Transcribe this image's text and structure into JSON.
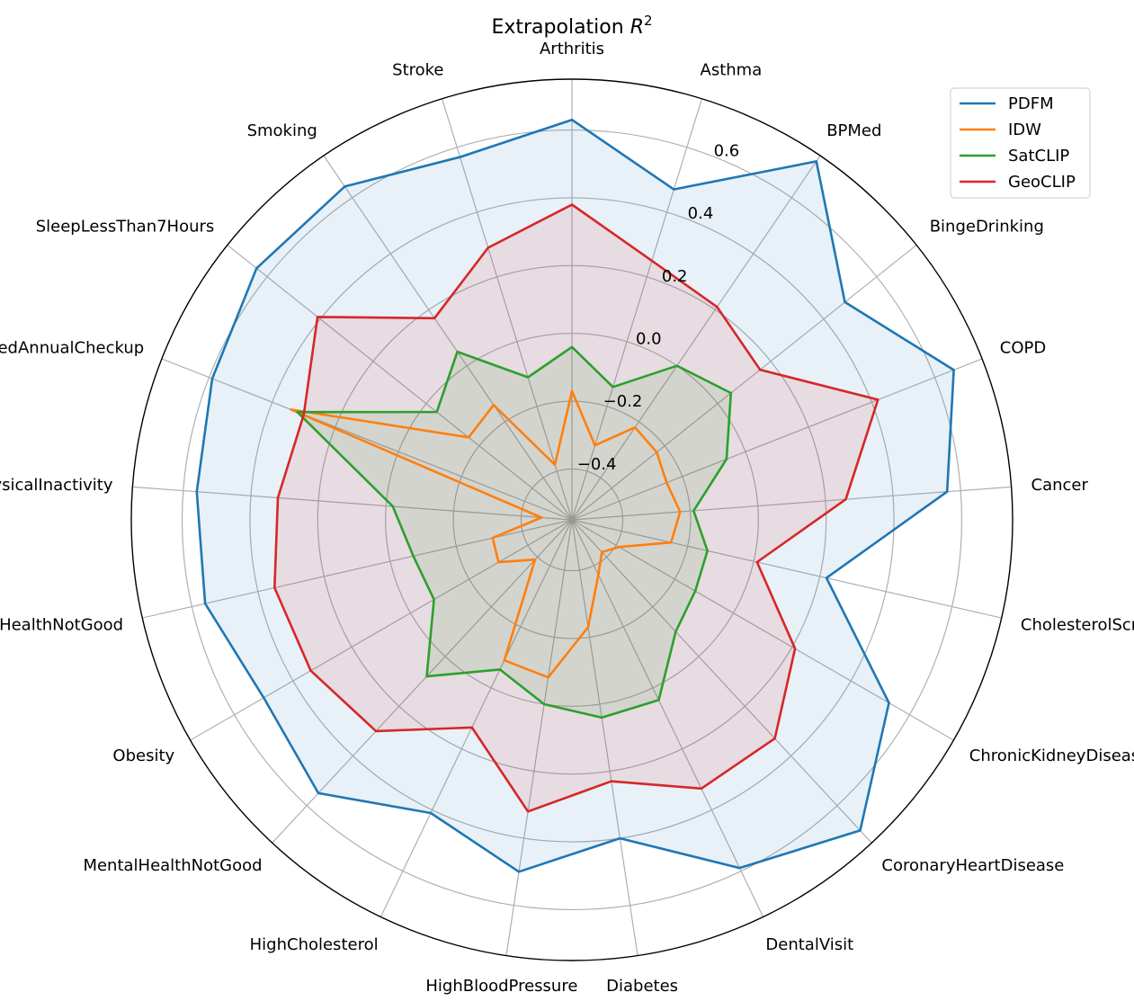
{
  "chart_data": {
    "type": "radar",
    "title": "Extrapolation $R^2$",
    "categories": [
      "Arthritis",
      "Asthma",
      "BPMed",
      "BingeDrinking",
      "COPD",
      "Cancer",
      "CholesterolScreening",
      "ChronicKidneyDisease",
      "CoronaryHeartDisease",
      "DentalVisit",
      "Diabetes",
      "HighBloodPressure",
      "HighCholesterol",
      "MentalHealthNotGood",
      "Obesity",
      "PhysicalHealthNotGood",
      "PhysicalInactivity",
      "ReceivedAnnualCheckup",
      "SleepLessThan7Hours",
      "Smoking",
      "Stroke"
    ],
    "rlim": [
      -0.55,
      0.75
    ],
    "rticks": [
      -0.4,
      -0.2,
      0.0,
      0.2,
      0.4,
      0.6
    ],
    "rtick_labels": [
      "−0.4",
      "−0.2",
      "0.0",
      "0.2",
      "0.4",
      "0.6"
    ],
    "grid": true,
    "legend_position": "top-right",
    "series": [
      {
        "name": "PDFM",
        "color": "#1f77b4",
        "fill": true,
        "values": [
          0.63,
          0.47,
          0.73,
          0.48,
          0.66,
          0.56,
          0.22,
          0.53,
          0.7,
          0.59,
          0.4,
          0.5,
          0.41,
          0.55,
          0.5,
          0.56,
          0.56,
          0.59,
          0.64,
          0.64,
          0.57
        ]
      },
      {
        "name": "IDW",
        "color": "#ff7f0e",
        "fill": false,
        "values": [
          -0.17,
          -0.32,
          -0.22,
          -0.23,
          -0.25,
          -0.23,
          -0.25,
          -0.39,
          -0.42,
          -0.37,
          -0.23,
          -0.08,
          -0.09,
          -0.39,
          -0.3,
          -0.31,
          -0.46,
          0.34,
          -0.16,
          -0.14,
          -0.38
        ]
      },
      {
        "name": "SatCLIP",
        "color": "#2ca02c",
        "fill": true,
        "values": [
          -0.04,
          -0.14,
          0.0,
          0.05,
          -0.06,
          -0.19,
          -0.14,
          -0.13,
          -0.1,
          0.04,
          0.04,
          0.0,
          -0.06,
          0.08,
          -0.08,
          -0.07,
          -0.02,
          0.32,
          -0.04,
          0.05,
          -0.11
        ]
      },
      {
        "name": "GeoCLIP",
        "color": "#d62728",
        "fill": true,
        "values": [
          0.38,
          0.25,
          0.21,
          0.16,
          0.42,
          0.26,
          0.01,
          0.21,
          0.33,
          0.33,
          0.23,
          0.32,
          0.13,
          0.3,
          0.34,
          0.35,
          0.32,
          0.3,
          0.41,
          0.17,
          0.29
        ]
      }
    ]
  }
}
